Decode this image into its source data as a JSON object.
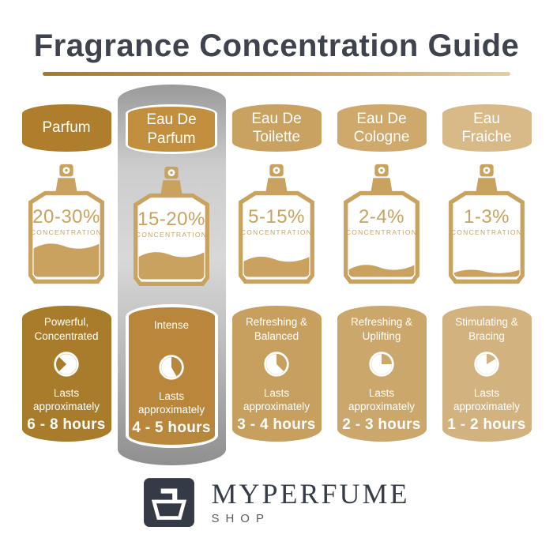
{
  "title": "Fragrance Concentration Guide",
  "labels": {
    "concentration": "CONCENTRATION",
    "lasts": "Lasts approximately"
  },
  "bottle_color": "#C9A25F",
  "underline_gradient": {
    "from": "#A5782A",
    "to": "#E5CDA0"
  },
  "highlight_panel_colors": {
    "top": "#9A9A9A",
    "mid": "#D8D8D8",
    "bottom": "#8F8F8F"
  },
  "columns": [
    {
      "name": "Parfum",
      "concentration": "20-30%",
      "fill_percent": 45,
      "clock_gap": {
        "start_deg": 225,
        "end_deg": 315
      },
      "description": "Powerful, Concentrated",
      "duration": "6 - 8 hours",
      "colors": {
        "header": "#AE7E2C",
        "card": "#A87C2B"
      },
      "highlighted": false
    },
    {
      "name": "Eau De Parfum",
      "concentration": "15-20%",
      "fill_percent": 36,
      "clock_gap": {
        "start_deg": 0,
        "end_deg": 150
      },
      "description": "Intense",
      "duration": "4 - 5 hours",
      "colors": {
        "header": "#C18F3E",
        "card": "#B9873B"
      },
      "highlighted": true
    },
    {
      "name": "Eau De Toilette",
      "concentration": "5-15%",
      "fill_percent": 26,
      "clock_gap": {
        "start_deg": 0,
        "end_deg": 135
      },
      "description": "Refreshing & Balanced",
      "duration": "3 - 4 hours",
      "colors": {
        "header": "#C9A262",
        "card": "#C7A060"
      },
      "highlighted": false
    },
    {
      "name": "Eau De Cologne",
      "concentration": "2-4%",
      "fill_percent": 14,
      "clock_gap": {
        "start_deg": 0,
        "end_deg": 90
      },
      "description": "Refreshing & Uplifting",
      "duration": "2 - 3 hours",
      "colors": {
        "header": "#CFA96C",
        "card": "#CCA76B"
      },
      "highlighted": false
    },
    {
      "name": "Eau Fraiche",
      "concentration": "1-3%",
      "fill_percent": 8,
      "clock_gap": {
        "start_deg": 0,
        "end_deg": 60
      },
      "description": "Stimulating & Bracing",
      "duration": "1 - 2 hours",
      "colors": {
        "header": "#D8BA89",
        "card": "#D2B27E"
      },
      "highlighted": false
    }
  ],
  "footer": {
    "brand": "MYPERFUME",
    "sub": "SHOP"
  }
}
